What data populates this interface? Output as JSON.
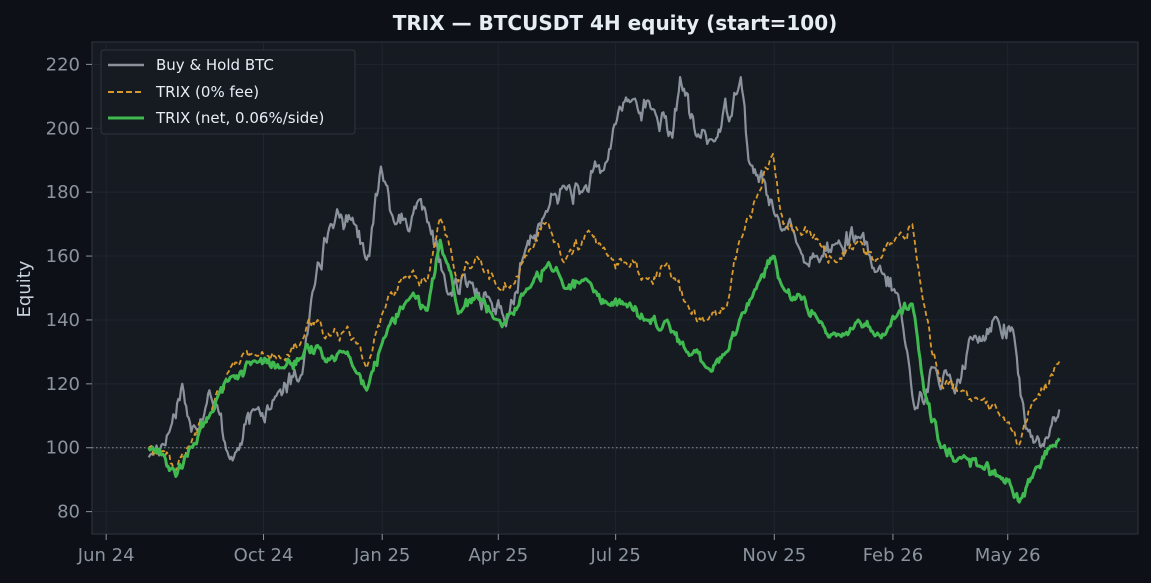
{
  "chart_data": {
    "type": "line",
    "title": "TRIX — BTCUSDT 4H equity (start=100)",
    "xlabel": "",
    "ylabel": "Equity",
    "x_ticks": [
      "Jun 24",
      "Oct 24",
      "Jan 25",
      "Apr 25",
      "Jul 25",
      "Nov 25",
      "Feb 26",
      "May 26"
    ],
    "y_ticks": [
      80,
      100,
      120,
      140,
      160,
      180,
      200,
      220
    ],
    "ylim": [
      73,
      227
    ],
    "xlim": [
      "2024-05-21",
      "2026-08-10"
    ],
    "reference_line": {
      "y": 100,
      "style": "dotted"
    },
    "grid": true,
    "legend_position": "top-left",
    "colors": {
      "background": "#0d1117",
      "plot_background": "#161b22",
      "grid": "#1f2630",
      "text": "#c9d1d9",
      "tick_text": "#8b949e",
      "buy_hold": "#8b929c",
      "trix_gross": "#d99a2b",
      "trix_net": "#3fb950"
    },
    "series": [
      {
        "name": "Buy & Hold BTC",
        "line_style": "solid",
        "x": [
          "2024-07-04",
          "2024-07-20",
          "2024-07-30",
          "2024-08-06",
          "2024-08-20",
          "2024-09-07",
          "2024-09-25",
          "2024-10-10",
          "2024-10-31",
          "2024-11-12",
          "2024-11-22",
          "2024-12-09",
          "2024-12-22",
          "2024-12-31",
          "2025-01-12",
          "2025-01-21",
          "2025-02-03",
          "2025-02-21",
          "2025-03-10",
          "2025-03-25",
          "2025-04-07",
          "2025-04-22",
          "2025-05-06",
          "2025-05-22",
          "2025-06-05",
          "2025-06-22",
          "2025-07-03",
          "2025-07-14",
          "2025-07-30",
          "2025-08-14",
          "2025-08-20",
          "2025-09-01",
          "2025-09-16",
          "2025-10-06",
          "2025-10-12",
          "2025-11-04",
          "2025-11-21",
          "2025-12-03",
          "2025-12-19",
          "2026-01-05",
          "2026-01-18",
          "2026-02-05",
          "2026-02-18",
          "2026-03-06",
          "2026-03-21",
          "2026-04-05",
          "2026-04-22",
          "2026-05-05",
          "2026-05-15",
          "2026-06-01",
          "2026-06-10"
        ],
        "values": [
          97,
          105,
          120,
          105,
          118,
          96,
          112,
          116,
          123,
          158,
          170,
          172,
          160,
          188,
          170,
          168,
          175,
          148,
          152,
          147,
          138,
          162,
          172,
          182,
          180,
          187,
          205,
          209,
          206,
          197,
          216,
          198,
          196,
          216,
          190,
          172,
          162,
          160,
          164,
          166,
          155,
          148,
          112,
          125,
          117,
          135,
          141,
          137,
          106,
          103,
          112
        ]
      },
      {
        "name": "TRIX (0% fee)",
        "line_style": "dashed",
        "x": [
          "2024-07-04",
          "2024-07-15",
          "2024-07-25",
          "2024-08-05",
          "2024-08-20",
          "2024-09-05",
          "2024-09-25",
          "2024-10-15",
          "2024-10-31",
          "2024-11-12",
          "2024-11-22",
          "2024-12-05",
          "2024-12-20",
          "2025-01-06",
          "2025-01-20",
          "2025-02-05",
          "2025-02-15",
          "2025-03-01",
          "2025-03-15",
          "2025-04-01",
          "2025-04-10",
          "2025-04-25",
          "2025-05-10",
          "2025-05-22",
          "2025-06-10",
          "2025-06-25",
          "2025-07-08",
          "2025-07-25",
          "2025-08-10",
          "2025-08-25",
          "2025-09-10",
          "2025-09-25",
          "2025-10-05",
          "2025-10-20",
          "2025-10-31",
          "2025-11-08",
          "2025-11-20",
          "2025-12-05",
          "2025-12-19",
          "2026-01-05",
          "2026-01-18",
          "2026-02-05",
          "2026-02-16",
          "2026-02-25",
          "2026-03-10",
          "2026-03-25",
          "2026-04-10",
          "2026-04-25",
          "2026-05-05",
          "2026-05-10",
          "2026-05-22",
          "2026-06-10"
        ],
        "values": [
          100,
          99,
          93,
          101,
          110,
          125,
          129,
          128,
          134,
          140,
          135,
          138,
          125,
          148,
          154,
          152,
          172,
          152,
          160,
          150,
          150,
          162,
          170,
          158,
          168,
          160,
          158,
          153,
          158,
          145,
          140,
          144,
          165,
          180,
          192,
          170,
          168,
          165,
          158,
          165,
          158,
          166,
          170,
          145,
          120,
          118,
          115,
          110,
          105,
          101,
          115,
          127
        ]
      },
      {
        "name": "TRIX (net, 0.06%/side)",
        "line_style": "solid",
        "x": [
          "2024-07-04",
          "2024-07-15",
          "2024-07-25",
          "2024-08-05",
          "2024-08-20",
          "2024-09-05",
          "2024-09-25",
          "2024-10-15",
          "2024-10-31",
          "2024-11-12",
          "2024-11-22",
          "2024-12-05",
          "2024-12-20",
          "2025-01-06",
          "2025-01-20",
          "2025-02-05",
          "2025-02-15",
          "2025-03-01",
          "2025-03-15",
          "2025-04-01",
          "2025-04-10",
          "2025-04-25",
          "2025-05-10",
          "2025-05-22",
          "2025-06-10",
          "2025-06-25",
          "2025-07-08",
          "2025-07-25",
          "2025-08-10",
          "2025-08-25",
          "2025-09-10",
          "2025-09-25",
          "2025-10-05",
          "2025-10-20",
          "2025-10-31",
          "2025-11-08",
          "2025-11-20",
          "2025-12-05",
          "2025-12-19",
          "2026-01-05",
          "2026-01-18",
          "2026-02-05",
          "2026-02-16",
          "2026-02-25",
          "2026-03-10",
          "2026-03-25",
          "2026-04-10",
          "2026-04-25",
          "2026-05-05",
          "2026-05-10",
          "2026-05-22",
          "2026-06-10"
        ],
        "values": [
          100,
          98,
          91,
          100,
          110,
          122,
          127,
          125,
          128,
          132,
          128,
          130,
          118,
          138,
          146,
          143,
          165,
          142,
          148,
          140,
          142,
          150,
          158,
          150,
          152,
          145,
          145,
          140,
          140,
          130,
          125,
          130,
          140,
          152,
          160,
          150,
          148,
          140,
          135,
          140,
          135,
          142,
          145,
          118,
          100,
          97,
          94,
          91,
          86,
          83,
          93,
          103
        ]
      }
    ]
  }
}
